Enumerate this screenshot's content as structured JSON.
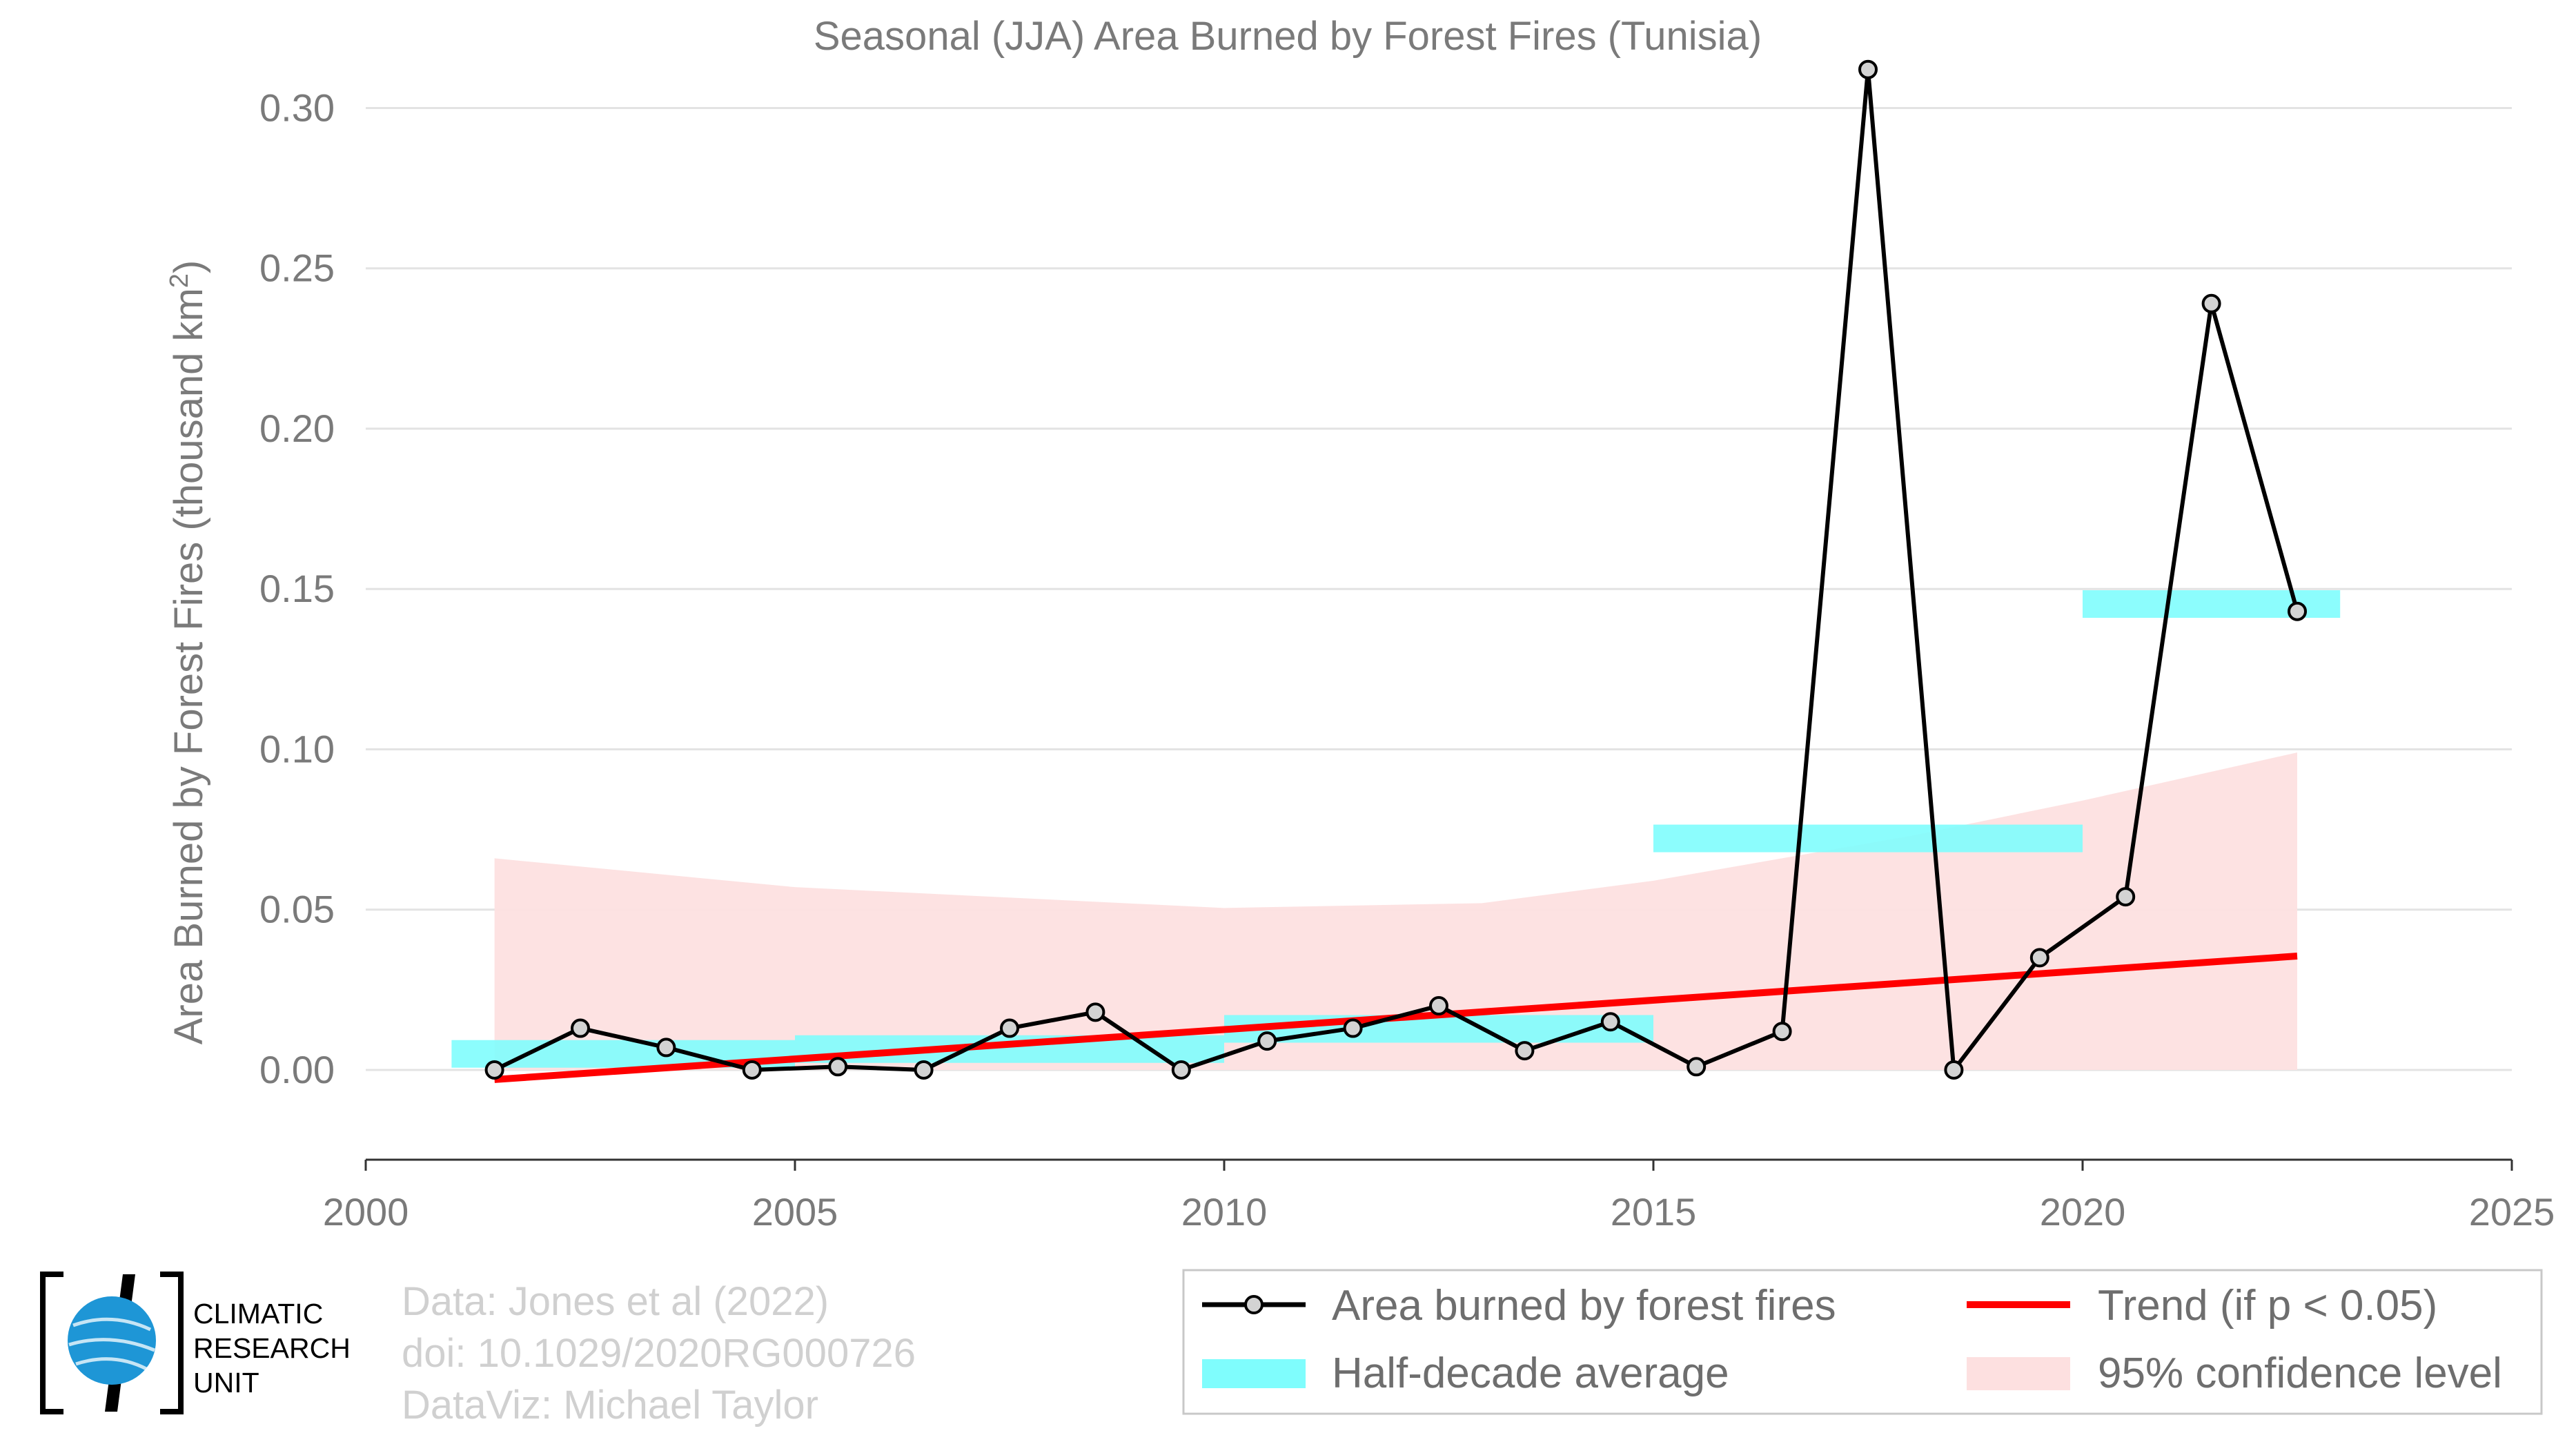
{
  "chart_data": {
    "type": "line",
    "title": "Seasonal (JJA) Area Burned by Forest Fires (Tunisia)",
    "ylabel_main": "Area Burned by Forest Fires (thousand km",
    "ylabel_sup": "2",
    "ylabel_close": ")",
    "xlabel": "",
    "xlim": [
      2000,
      2025
    ],
    "ylim": [
      -0.028,
      0.31
    ],
    "x_ticks": [
      2000,
      2005,
      2010,
      2015,
      2020,
      2025
    ],
    "x_tick_labels": [
      "2000",
      "2005",
      "2010",
      "2015",
      "2020",
      "2025"
    ],
    "y_ticks": [
      0.0,
      0.05,
      0.1,
      0.15,
      0.2,
      0.25,
      0.3
    ],
    "y_tick_labels": [
      "0.00",
      "0.05",
      "0.10",
      "0.15",
      "0.20",
      "0.25",
      "0.30"
    ],
    "grid": "horizontal",
    "legend_position": "bottom-right",
    "series": [
      {
        "name": "Area burned by forest fires",
        "color": "#000000",
        "x": [
          2001.5,
          2002.5,
          2003.5,
          2004.5,
          2005.5,
          2006.5,
          2007.5,
          2008.5,
          2009.5,
          2010.5,
          2011.5,
          2012.5,
          2013.5,
          2014.5,
          2015.5,
          2016.5,
          2017.5,
          2018.5,
          2019.5,
          2020.5,
          2021.5,
          2022.5
        ],
        "y": [
          0.0,
          0.013,
          0.007,
          0.0,
          0.001,
          0.0,
          0.013,
          0.018,
          0.0,
          0.009,
          0.013,
          0.02,
          0.006,
          0.015,
          0.001,
          0.012,
          0.312,
          0.0,
          0.035,
          0.054,
          0.239,
          0.143
        ]
      },
      {
        "name": "Half-decade average",
        "color": "#7ffdfd",
        "segments": [
          {
            "x0": 2001,
            "x1": 2005,
            "y": 0.005
          },
          {
            "x0": 2005,
            "x1": 2010,
            "y": 0.0065
          },
          {
            "x0": 2010,
            "x1": 2015,
            "y": 0.0128
          },
          {
            "x0": 2015,
            "x1": 2020,
            "y": 0.0722
          },
          {
            "x0": 2020,
            "x1": 2023,
            "y": 0.1453
          }
        ]
      },
      {
        "name": "Trend (if p < 0.05)",
        "color": "#ff0000",
        "x": [
          2001.5,
          2022.5
        ],
        "y": [
          -0.003,
          0.0355
        ]
      },
      {
        "name": "95% confidence level",
        "color": "#fde0e0",
        "x": [
          2001.5,
          2005,
          2010,
          2013,
          2015,
          2018,
          2020,
          2022.5
        ],
        "upper": [
          0.066,
          0.057,
          0.0505,
          0.052,
          0.059,
          0.073,
          0.084,
          0.099
        ],
        "lower": [
          0.0,
          0.0,
          0.0,
          0.0,
          0.0,
          0.0,
          0.0,
          0.0
        ]
      }
    ],
    "legend": [
      {
        "label": "Area burned by forest fires",
        "kind": "line-marker"
      },
      {
        "label": "Trend (if p < 0.05)",
        "kind": "line"
      },
      {
        "label": "Half-decade average",
        "kind": "band"
      },
      {
        "label": "95% confidence level",
        "kind": "area"
      }
    ]
  },
  "credits": {
    "line1": "Data: Jones et al (2022)",
    "line2": "doi: 10.1029/2020RG000726",
    "line3": "DataViz: Michael Taylor"
  },
  "logo": {
    "line1": "CLIMATIC",
    "line2": "RESEARCH",
    "line3": "UNIT",
    "globe_color": "#1e96d6"
  }
}
